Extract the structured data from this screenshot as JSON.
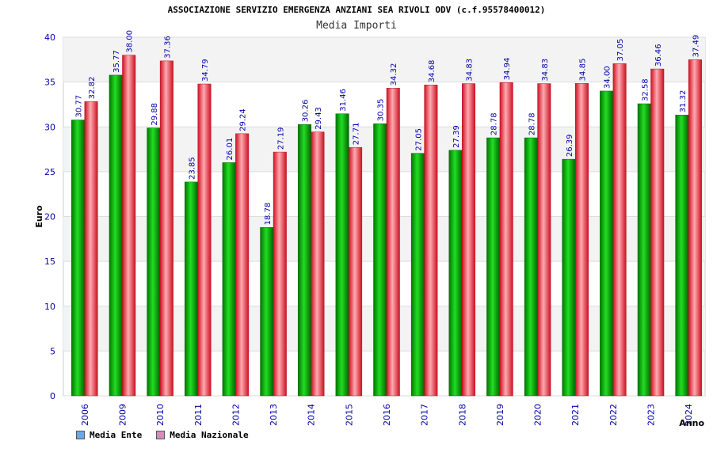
{
  "chart_data": {
    "type": "bar",
    "title": "ASSOCIAZIONE SERVIZIO EMERGENZA ANZIANI SEA RIVOLI ODV (c.f.95578400012)",
    "subtitle": "Media Importi",
    "xlabel": "Anno",
    "ylabel": "Euro",
    "ylim": [
      0,
      40
    ],
    "yticks": [
      0,
      5,
      10,
      15,
      20,
      25,
      30,
      35,
      40
    ],
    "categories": [
      "2006",
      "2009",
      "2010",
      "2011",
      "2012",
      "2013",
      "2014",
      "2015",
      "2016",
      "2017",
      "2018",
      "2019",
      "2020",
      "2021",
      "2022",
      "2023",
      "2024"
    ],
    "series": [
      {
        "name": "Media Ente",
        "color": "#00aa00",
        "values": [
          30.77,
          35.77,
          29.88,
          23.85,
          26.01,
          18.78,
          30.26,
          31.46,
          30.35,
          27.05,
          27.39,
          28.78,
          28.78,
          26.39,
          34.0,
          32.58,
          31.32
        ],
        "labels": [
          "30.77",
          "35.77",
          "29.88",
          "23.85",
          "26.01",
          "18.78",
          "30.26",
          "31.46",
          "30.35",
          "27.05",
          "27.39",
          "28.78",
          "28.78",
          "26.39",
          "34.00",
          "32.58",
          "31.32"
        ]
      },
      {
        "name": "Media Nazionale",
        "color": "#ee2233",
        "values": [
          32.82,
          38.0,
          37.36,
          34.79,
          29.24,
          27.19,
          29.43,
          27.71,
          34.32,
          34.68,
          34.83,
          34.94,
          34.83,
          34.85,
          37.05,
          36.46,
          37.49
        ],
        "labels": [
          "32.82",
          "38.00",
          "37.36",
          "34.79",
          "29.24",
          "27.19",
          "29.43",
          "27.71",
          "34.32",
          "34.68",
          "34.83",
          "34.94",
          "34.83",
          "34.85",
          "37.05",
          "36.46",
          "37.49"
        ]
      }
    ],
    "legend": [
      {
        "label": "Media Ente",
        "color": "#66aaee"
      },
      {
        "label": "Media Nazionale",
        "color": "#dd88bb"
      }
    ],
    "grid": true,
    "legend_position": "bottom-left"
  }
}
